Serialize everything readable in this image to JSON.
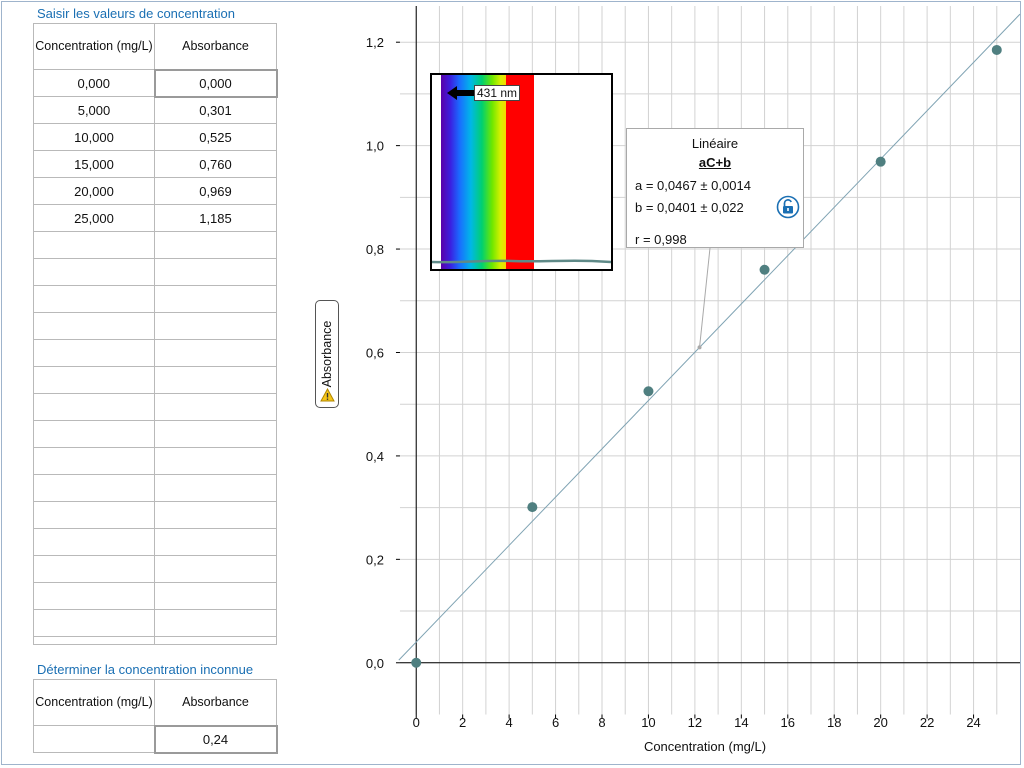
{
  "data_table": {
    "title": "Saisir les valeurs de concentration",
    "col_conc": "Concentration (mg/L)",
    "col_abs": "Absorbance",
    "rows": [
      {
        "conc": "0,000",
        "abs": "0,000"
      },
      {
        "conc": "5,000",
        "abs": "0,301"
      },
      {
        "conc": "10,000",
        "abs": "0,525"
      },
      {
        "conc": "15,000",
        "abs": "0,760"
      },
      {
        "conc": "20,000",
        "abs": "0,969"
      },
      {
        "conc": "25,000",
        "abs": "1,185"
      }
    ]
  },
  "unknown_table": {
    "title": "Déterminer la concentration inconnue",
    "col_conc": "Concentration (mg/L)",
    "col_abs": "Absorbance",
    "conc": "",
    "abs": "0,24"
  },
  "spectrum_inset": {
    "wavelength_label": "431 nm",
    "icon": "arrow-left-icon"
  },
  "fit": {
    "title": "Linéaire",
    "equation": "aC+b",
    "a": "a = 0,0467 ± 0,0014",
    "b": "b = 0,0401 ± 0,022",
    "r": "r = 0,998",
    "icon": "unlock-icon"
  },
  "colors": {
    "accent": "#1a6fb3",
    "points": "#4f7f80",
    "fit_line": "#7fa3b3",
    "grid": "#d2d2d2",
    "warning": "#f5c518"
  },
  "chart_data": {
    "type": "scatter",
    "xlabel": "Concentration (mg/L)",
    "ylabel": "Absorbance",
    "xlim": [
      -1,
      26
    ],
    "ylim": [
      -0.13,
      1.27
    ],
    "x_ticks": [
      0,
      2,
      4,
      6,
      8,
      10,
      12,
      14,
      16,
      18,
      20,
      22,
      24
    ],
    "y_ticks": [
      0,
      0.2,
      0.4,
      0.6,
      0.8,
      1.0,
      1.2
    ],
    "y_tick_labels": [
      "0,0",
      "0,2",
      "0,4",
      "0,6",
      "0,8",
      "1,0",
      "1,2"
    ],
    "grid": true,
    "points": {
      "x": [
        0,
        5,
        10,
        15,
        20,
        25
      ],
      "y": [
        0,
        0.301,
        0.525,
        0.76,
        0.969,
        1.185
      ]
    },
    "fit": {
      "type": "linear",
      "slope": 0.0467,
      "intercept": 0.0401,
      "annotation_x": 12.2
    }
  }
}
